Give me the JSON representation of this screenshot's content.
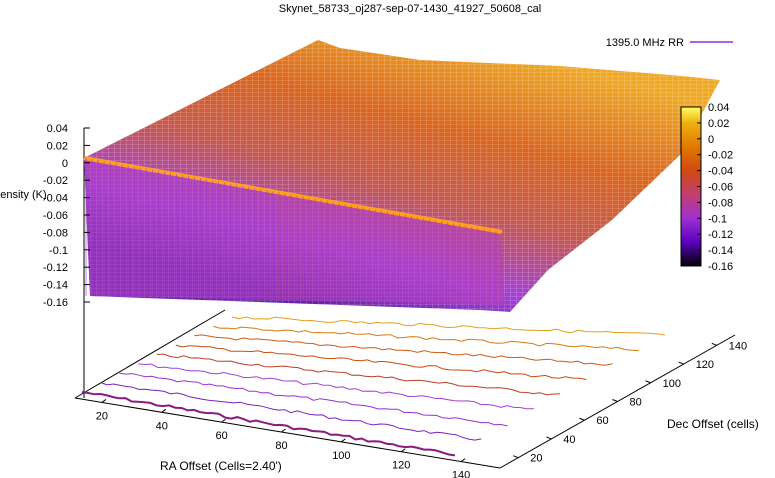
{
  "chart_data": {
    "type": "surface",
    "title": "Skynet_58733_oj287-sep-07-1430_41927_50608_cal",
    "xlabel": "RA Offset (Cells=2.40')",
    "ylabel": "Dec Offset (cells)",
    "zlabel": "Intensity (K)",
    "legend": {
      "label": "1395.0 MHz RR",
      "color": "#8e2ee0",
      "placement": "top-right"
    },
    "x_ticks": [
      "20",
      "40",
      "60",
      "80",
      "100",
      "120",
      "140"
    ],
    "y_ticks": [
      "20",
      "40",
      "60",
      "80",
      "100",
      "120",
      "140"
    ],
    "z_ticks": [
      "0.04",
      "0.02",
      "0",
      "-0.02",
      "-0.04",
      "-0.06",
      "-0.08",
      "-0.1",
      "-0.12",
      "-0.14",
      "-0.16"
    ],
    "zlim": [
      -0.16,
      0.04
    ],
    "colorbar": {
      "ticks": [
        "0.04",
        "0.02",
        "0",
        "-0.02",
        "-0.04",
        "-0.06",
        "-0.08",
        "-0.1",
        "-0.12",
        "-0.14",
        "-0.16"
      ],
      "range": [
        -0.16,
        0.04
      ],
      "palette": [
        "#000000",
        "#5a00c0",
        "#a030d0",
        "#c04070",
        "#d04a10",
        "#e07a00",
        "#f0b010",
        "#ffff60"
      ]
    },
    "grid": false
  }
}
